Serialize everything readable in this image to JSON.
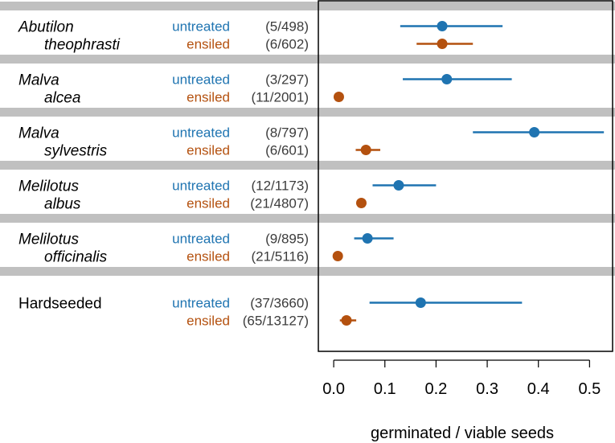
{
  "chart_data": {
    "type": "forest-plot",
    "title": "",
    "xlabel": "germinated / viable seeds",
    "xlim": [
      -0.03,
      0.545
    ],
    "xticks": [
      0.0,
      0.1,
      0.2,
      0.3,
      0.4,
      0.5
    ],
    "xtick_labels": [
      "0.0",
      "0.1",
      "0.2",
      "0.3",
      "0.4",
      "0.5"
    ],
    "colors": {
      "untreated": "#1f74b1",
      "ensiled": "#b4510f",
      "separator": "#c0c0c0",
      "text": "#000000",
      "count_text": "#3c3c3c"
    },
    "groups": [
      {
        "name_line1": "Abutilon",
        "name_line2": "theophrasti",
        "italic": true,
        "rows": [
          {
            "treatment": "untreated",
            "count": "(5/498)",
            "estimate": 0.212,
            "lower": 0.13,
            "upper": 0.33
          },
          {
            "treatment": "ensiled",
            "count": "(6/602)",
            "estimate": 0.212,
            "lower": 0.162,
            "upper": 0.272
          }
        ]
      },
      {
        "name_line1": "Malva",
        "name_line2": "alcea",
        "italic": true,
        "rows": [
          {
            "treatment": "untreated",
            "count": "(3/297)",
            "estimate": 0.221,
            "lower": 0.135,
            "upper": 0.348
          },
          {
            "treatment": "ensiled",
            "count": "(11/2001)",
            "estimate": 0.01,
            "lower": 0.006,
            "upper": 0.014
          }
        ]
      },
      {
        "name_line1": "Malva",
        "name_line2": "sylvestris",
        "italic": true,
        "rows": [
          {
            "treatment": "untreated",
            "count": "(8/797)",
            "estimate": 0.392,
            "lower": 0.272,
            "upper": 0.528
          },
          {
            "treatment": "ensiled",
            "count": "(6/601)",
            "estimate": 0.063,
            "lower": 0.043,
            "upper": 0.091
          }
        ]
      },
      {
        "name_line1": "Melilotus",
        "name_line2": "albus",
        "italic": true,
        "rows": [
          {
            "treatment": "untreated",
            "count": "(12/1173)",
            "estimate": 0.127,
            "lower": 0.076,
            "upper": 0.2
          },
          {
            "treatment": "ensiled",
            "count": "(21/4807)",
            "estimate": 0.054,
            "lower": 0.046,
            "upper": 0.063
          }
        ]
      },
      {
        "name_line1": "Melilotus",
        "name_line2": "officinalis",
        "italic": true,
        "rows": [
          {
            "treatment": "untreated",
            "count": "(9/895)",
            "estimate": 0.066,
            "lower": 0.04,
            "upper": 0.117
          },
          {
            "treatment": "ensiled",
            "count": "(21/5116)",
            "estimate": 0.008,
            "lower": 0.004,
            "upper": 0.012
          }
        ]
      },
      {
        "name_line1": "Hardseeded",
        "name_line2": "",
        "italic": false,
        "rows": [
          {
            "treatment": "untreated",
            "count": "(37/3660)",
            "estimate": 0.17,
            "lower": 0.07,
            "upper": 0.368
          },
          {
            "treatment": "ensiled",
            "count": "(65/13127)",
            "estimate": 0.025,
            "lower": 0.012,
            "upper": 0.044
          }
        ]
      }
    ]
  }
}
